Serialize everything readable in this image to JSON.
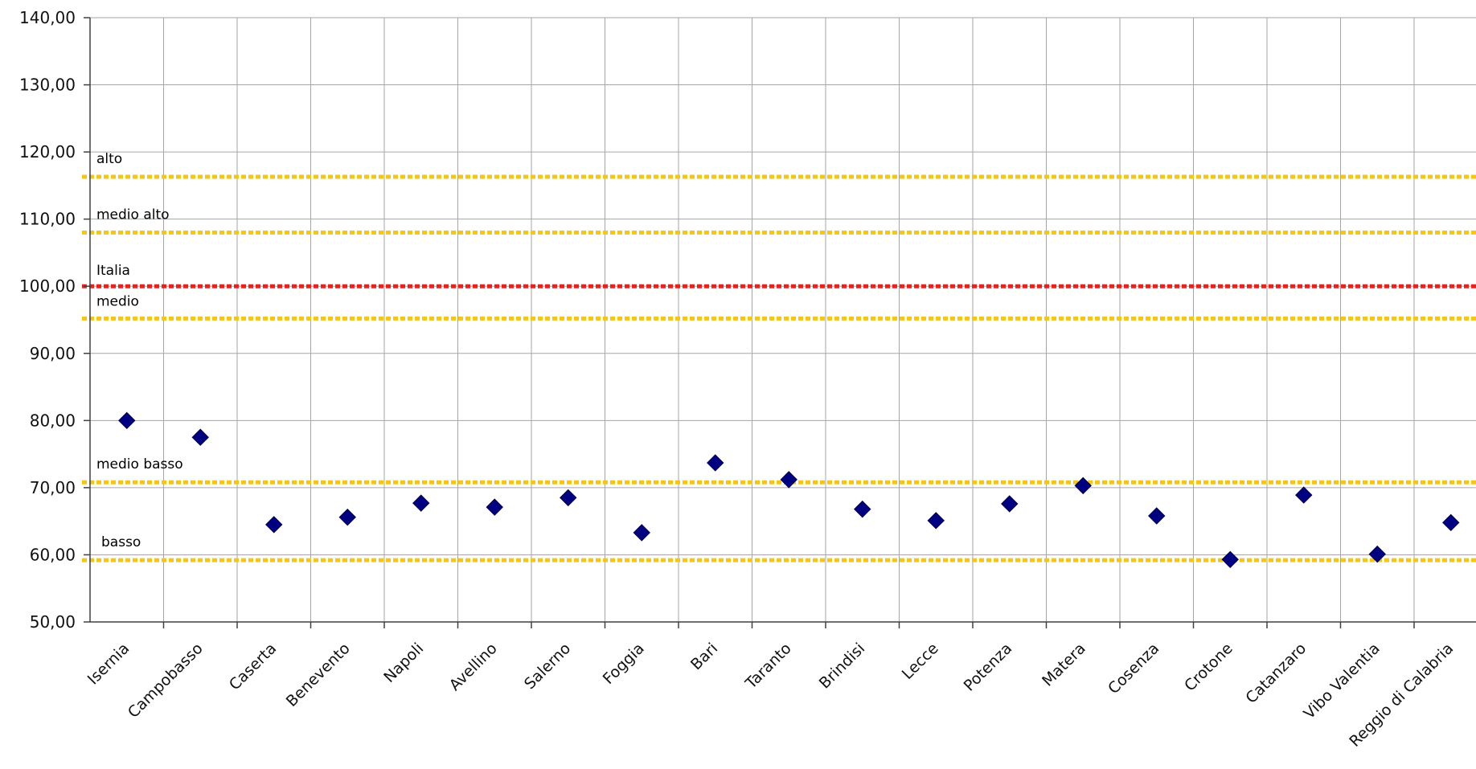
{
  "chart_data": {
    "type": "scatter",
    "title": "",
    "xlabel": "",
    "ylabel": "",
    "ylim": [
      50,
      140
    ],
    "y_ticks": [
      "50,00",
      "60,00",
      "70,00",
      "80,00",
      "90,00",
      "100,00",
      "110,00",
      "120,00",
      "130,00",
      "140,00"
    ],
    "grid": true,
    "categories": [
      "Isernia",
      "Campobasso",
      "Caserta",
      "Benevento",
      "Napoli",
      "Avellino",
      "Salerno",
      "Foggia",
      "Bari",
      "Taranto",
      "Brindisi",
      "Lecce",
      "Potenza",
      "Matera",
      "Cosenza",
      "Crotone",
      "Catanzaro",
      "Vibo Valentia",
      "Reggio di Calabria"
    ],
    "series": [
      {
        "color": "#000080",
        "marker": "diamond",
        "values": [
          80.0,
          77.5,
          64.5,
          65.6,
          67.7,
          67.1,
          68.5,
          63.3,
          73.7,
          71.2,
          66.8,
          65.1,
          67.6,
          70.3,
          65.8,
          59.3,
          68.9,
          60.1,
          64.8
        ]
      }
    ],
    "reference_lines": [
      {
        "label": "alto",
        "value": 116.3,
        "color": "#f5c518"
      },
      {
        "label": "medio alto",
        "value": 108.0,
        "color": "#f5c518"
      },
      {
        "label": "Italia",
        "value": 100.0,
        "color": "#e8231e"
      },
      {
        "label": "medio",
        "value": 95.2,
        "color": "#f5c518"
      },
      {
        "label": "medio basso",
        "value": 70.8,
        "color": "#f5c518"
      },
      {
        "label": "basso",
        "value": 59.2,
        "color": "#f5c518"
      }
    ]
  }
}
